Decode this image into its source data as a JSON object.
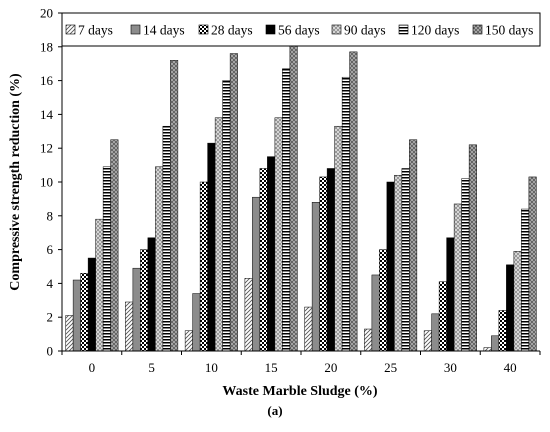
{
  "chart_data": {
    "type": "bar",
    "xlabel": "Waste Marble Sludge (%)",
    "ylabel": "Compressive strength reduction (%)",
    "caption": "(a)",
    "ylim": [
      0,
      20
    ],
    "yticks": [
      0,
      2,
      4,
      6,
      8,
      10,
      12,
      14,
      16,
      18,
      20
    ],
    "grid": false,
    "legend_position": "top",
    "categories": [
      "0",
      "5",
      "10",
      "15",
      "20",
      "25",
      "30",
      "40"
    ],
    "series": [
      {
        "name": "7 days",
        "pattern": "diagonal",
        "values": [
          2.1,
          2.9,
          1.2,
          4.3,
          2.6,
          1.3,
          1.2,
          0.2
        ]
      },
      {
        "name": "14 days",
        "pattern": "gray",
        "values": [
          4.2,
          4.9,
          3.4,
          9.1,
          8.8,
          4.5,
          2.2,
          0.9
        ]
      },
      {
        "name": "28 days",
        "pattern": "checker",
        "values": [
          4.6,
          6.0,
          10.0,
          10.8,
          10.3,
          6.0,
          4.1,
          2.4
        ]
      },
      {
        "name": "56 days",
        "pattern": "black",
        "values": [
          5.5,
          6.7,
          12.3,
          11.5,
          10.8,
          10.0,
          6.7,
          5.1
        ]
      },
      {
        "name": "90 days",
        "pattern": "lightcheck",
        "values": [
          7.8,
          10.9,
          13.8,
          13.8,
          13.3,
          10.4,
          8.7,
          5.9
        ]
      },
      {
        "name": "120 days",
        "pattern": "horizontal",
        "values": [
          10.9,
          13.3,
          16.0,
          16.7,
          16.2,
          10.8,
          10.2,
          8.4
        ]
      },
      {
        "name": "150 days",
        "pattern": "darkcross",
        "values": [
          12.5,
          17.2,
          17.6,
          18.3,
          17.7,
          12.5,
          12.2,
          10.3
        ]
      }
    ]
  }
}
